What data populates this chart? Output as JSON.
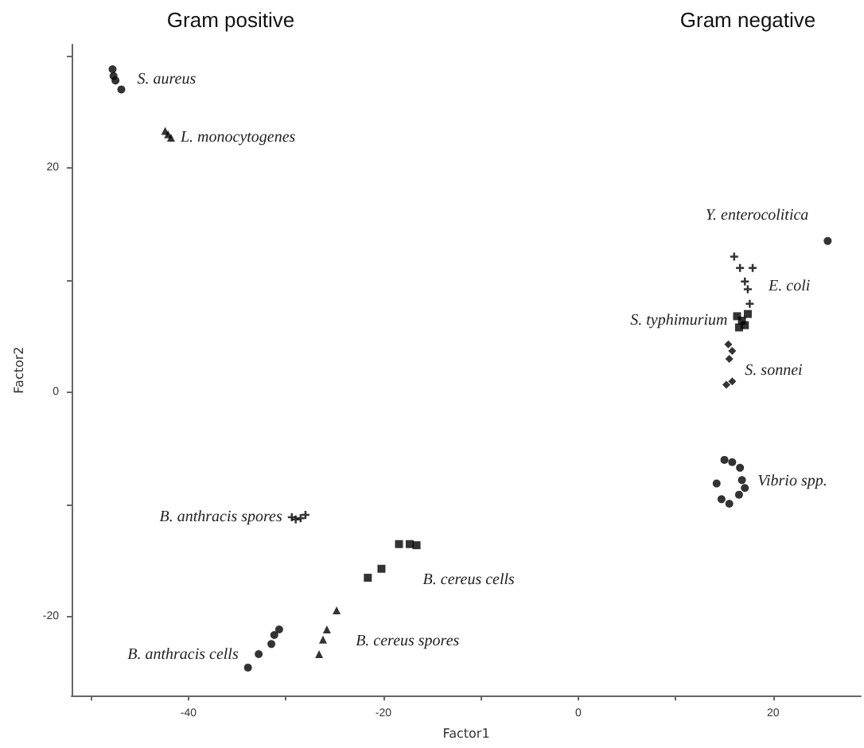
{
  "chart_data": {
    "type": "scatter",
    "xlabel": "Factor1",
    "ylabel": "Factor2",
    "xlim": [
      -52,
      29
    ],
    "xticks": [
      {
        "value": -50,
        "label": null
      },
      -40,
      {
        "value": -30,
        "label": null
      },
      -20,
      {
        "value": -10,
        "label": null
      },
      0,
      {
        "value": 10,
        "label": null
      },
      20
    ],
    "ylim": [
      -27,
      31
    ],
    "yticks": [
      -20,
      {
        "value": -10,
        "label": null
      },
      0,
      {
        "value": 10,
        "label": null
      },
      20,
      {
        "value": 30,
        "label": null
      }
    ],
    "legend": false,
    "annotations": [
      "Gram positive",
      "Gram negative"
    ],
    "series": [
      {
        "name": "S. aureus",
        "color": "#000000",
        "marker": "circle",
        "x": [
          -47.8,
          -47.7,
          -47.5,
          -46.9
        ],
        "values": [
          28.8,
          28.2,
          27.8,
          27.0
        ]
      },
      {
        "name": "L. monocytogenes",
        "color": "#000000",
        "marker": "triangle",
        "x": [
          -42.4,
          -42.1,
          -41.8
        ],
        "values": [
          23.3,
          23.0,
          22.7
        ]
      },
      {
        "name": "B. anthracis spores",
        "color": "#000000",
        "marker": "cross",
        "x": [
          -29.4,
          -29.0,
          -28.5,
          -28.0
        ],
        "values": [
          -11.1,
          -11.3,
          -11.2,
          -10.9
        ]
      },
      {
        "name": "B. cereus cells",
        "color": "#000000",
        "marker": "square",
        "x": [
          -18.4,
          -17.3,
          -16.6,
          -20.2,
          -21.6
        ],
        "values": [
          -13.5,
          -13.5,
          -13.6,
          -15.7,
          -16.5
        ]
      },
      {
        "name": "B. cereus spores",
        "color": "#000000",
        "marker": "triangle",
        "x": [
          -24.8,
          -25.8,
          -26.2,
          -26.6
        ],
        "values": [
          -19.4,
          -21.1,
          -22.0,
          -23.3
        ]
      },
      {
        "name": "B. anthracis cells",
        "color": "#000000",
        "marker": "circle",
        "x": [
          -33.9,
          -32.8,
          -31.5,
          -31.2,
          -30.7
        ],
        "values": [
          -24.5,
          -23.3,
          -22.4,
          -21.6,
          -21.1
        ]
      },
      {
        "name": "Y. enterocolitica",
        "color": "#000000",
        "marker": "circle",
        "x": [
          25.6
        ],
        "values": [
          13.5
        ]
      },
      {
        "name": "E. coli",
        "color": "#000000",
        "marker": "cross",
        "x": [
          16.0,
          16.6,
          17.9,
          17.1,
          17.4,
          17.6
        ],
        "values": [
          12.1,
          11.1,
          11.1,
          9.9,
          9.2,
          7.9
        ]
      },
      {
        "name": "S. typhimurium",
        "color": "#000000",
        "marker": "square",
        "x": [
          16.3,
          16.8,
          17.1,
          16.5,
          17.4
        ],
        "values": [
          6.8,
          6.4,
          6.0,
          5.8,
          7.0
        ]
      },
      {
        "name": "S. sonnei",
        "color": "#000000",
        "marker": "diamond",
        "x": [
          15.4,
          15.8,
          15.5,
          15.2,
          15.8
        ],
        "values": [
          4.3,
          3.7,
          3.0,
          0.7,
          1.0
        ]
      },
      {
        "name": "Vibrio spp.",
        "color": "#000000",
        "marker": "circle",
        "x": [
          15.0,
          15.8,
          16.6,
          16.8,
          16.5,
          15.5,
          14.7,
          14.2,
          17.1
        ],
        "values": [
          -6.0,
          -6.2,
          -6.7,
          -7.8,
          -9.1,
          -9.9,
          -9.5,
          -8.1,
          -8.5
        ]
      }
    ]
  }
}
